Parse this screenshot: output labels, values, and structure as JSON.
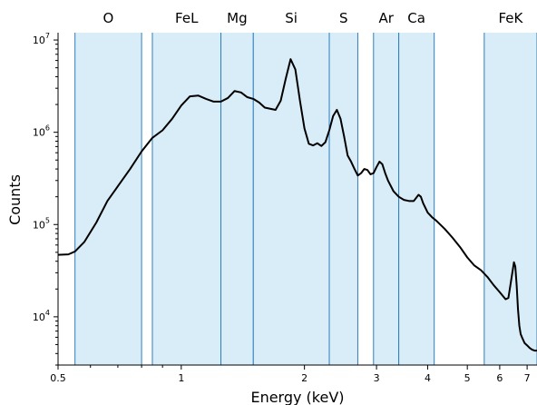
{
  "chart_data": {
    "type": "line",
    "title": "",
    "xlabel": "Energy (keV)",
    "ylabel": "Counts",
    "x_scale": "log",
    "y_scale": "log",
    "xlim": [
      0.5,
      7.4
    ],
    "ylim": [
      3000,
      12000000
    ],
    "grid": false,
    "legend": "none",
    "colors": {
      "band_fill": "#d8edf7",
      "band_edge": "#2f7fbf",
      "line": "#000000"
    },
    "x_ticks": [
      {
        "value": 0.5,
        "label": "0.5"
      },
      {
        "value": 1,
        "label": "1"
      },
      {
        "value": 2,
        "label": "2"
      },
      {
        "value": 3,
        "label": "3"
      },
      {
        "value": 4,
        "label": "4"
      },
      {
        "value": 5,
        "label": "5"
      },
      {
        "value": 6,
        "label": "6"
      },
      {
        "value": 7,
        "label": "7"
      }
    ],
    "y_ticks": [
      {
        "value": 10000,
        "base": "10",
        "exp": "4"
      },
      {
        "value": 100000,
        "base": "10",
        "exp": "5"
      },
      {
        "value": 1000000,
        "base": "10",
        "exp": "6"
      },
      {
        "value": 10000000,
        "base": "10",
        "exp": "7"
      }
    ],
    "bands": [
      {
        "label": "O",
        "x0": 0.55,
        "x1": 0.8
      },
      {
        "label": "FeL",
        "x0": 0.85,
        "x1": 1.25
      },
      {
        "label": "Mg",
        "x0": 1.25,
        "x1": 1.5
      },
      {
        "label": "Si",
        "x0": 1.5,
        "x1": 2.3
      },
      {
        "label": "S",
        "x0": 2.3,
        "x1": 2.7
      },
      {
        "label": "Ar",
        "x0": 2.95,
        "x1": 3.4
      },
      {
        "label": "Ca",
        "x0": 3.4,
        "x1": 4.15
      },
      {
        "label": "FeK",
        "x0": 5.5,
        "x1": 7.4
      }
    ],
    "series": [
      {
        "x": [
          0.5,
          0.53,
          0.55,
          0.58,
          0.62,
          0.66,
          0.7,
          0.75,
          0.8,
          0.85,
          0.9,
          0.95,
          1.0,
          1.05,
          1.1,
          1.15,
          1.2,
          1.25,
          1.3,
          1.35,
          1.4,
          1.45,
          1.5,
          1.55,
          1.6,
          1.7,
          1.75,
          1.8,
          1.85,
          1.9,
          1.95,
          2.0,
          2.05,
          2.1,
          2.15,
          2.2,
          2.25,
          2.3,
          2.35,
          2.4,
          2.45,
          2.5,
          2.55,
          2.6,
          2.65,
          2.7,
          2.75,
          2.8,
          2.85,
          2.9,
          2.95,
          3.0,
          3.05,
          3.1,
          3.15,
          3.2,
          3.3,
          3.4,
          3.5,
          3.6,
          3.7,
          3.8,
          3.85,
          3.9,
          4.0,
          4.1,
          4.2,
          4.4,
          4.6,
          4.8,
          5.0,
          5.2,
          5.4,
          5.6,
          5.8,
          6.0,
          6.2,
          6.3,
          6.4,
          6.5,
          6.55,
          6.6,
          6.65,
          6.7,
          6.75,
          6.8,
          6.9,
          7.0,
          7.1,
          7.2,
          7.3,
          7.4
        ],
        "y": [
          47000,
          47500,
          51000,
          65000,
          105000,
          180000,
          260000,
          400000,
          620000,
          870000,
          1050000,
          1400000,
          1950000,
          2450000,
          2500000,
          2300000,
          2150000,
          2150000,
          2350000,
          2800000,
          2700000,
          2400000,
          2300000,
          2100000,
          1850000,
          1750000,
          2200000,
          3800000,
          6200000,
          4800000,
          2200000,
          1100000,
          750000,
          720000,
          760000,
          710000,
          780000,
          1050000,
          1500000,
          1750000,
          1400000,
          900000,
          560000,
          480000,
          400000,
          340000,
          360000,
          400000,
          390000,
          350000,
          360000,
          420000,
          480000,
          450000,
          360000,
          300000,
          230000,
          200000,
          185000,
          180000,
          180000,
          210000,
          200000,
          170000,
          135000,
          120000,
          110000,
          90000,
          72000,
          57000,
          44000,
          36000,
          32000,
          27000,
          22000,
          18500,
          15500,
          16000,
          25000,
          39000,
          35000,
          22000,
          12000,
          8000,
          6500,
          6000,
          5200,
          4900,
          4600,
          4400,
          4300,
          4300
        ]
      }
    ]
  }
}
